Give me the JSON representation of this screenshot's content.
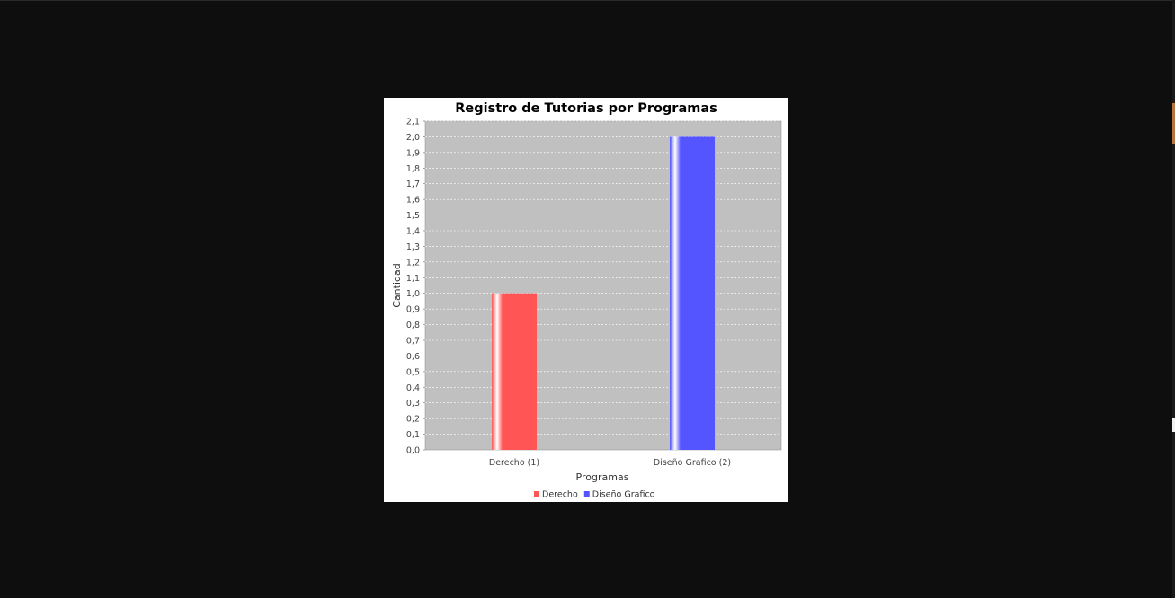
{
  "chart_data": {
    "type": "bar",
    "title": "Registro de Tutorias por Programas",
    "xlabel": "Programas",
    "ylabel": "Cantidad",
    "ylim": [
      0.0,
      2.1
    ],
    "y_ticks": [
      "0,0",
      "0,1",
      "0,2",
      "0,3",
      "0,4",
      "0,5",
      "0,6",
      "0,7",
      "0,8",
      "0,9",
      "1,0",
      "1,1",
      "1,2",
      "1,3",
      "1,4",
      "1,5",
      "1,6",
      "1,7",
      "1,8",
      "1,9",
      "2,0",
      "2,1"
    ],
    "categories": [
      "Derecho (1)",
      "Diseño Grafico (2)"
    ],
    "series": [
      {
        "name": "Derecho",
        "values": [
          1.0,
          null
        ],
        "color": "#ff5555"
      },
      {
        "name": "Diseño Grafico",
        "values": [
          null,
          2.0
        ],
        "color": "#5555ff"
      }
    ],
    "grid": true,
    "legend_position": "bottom",
    "plot_background": "#c0c0c0"
  }
}
